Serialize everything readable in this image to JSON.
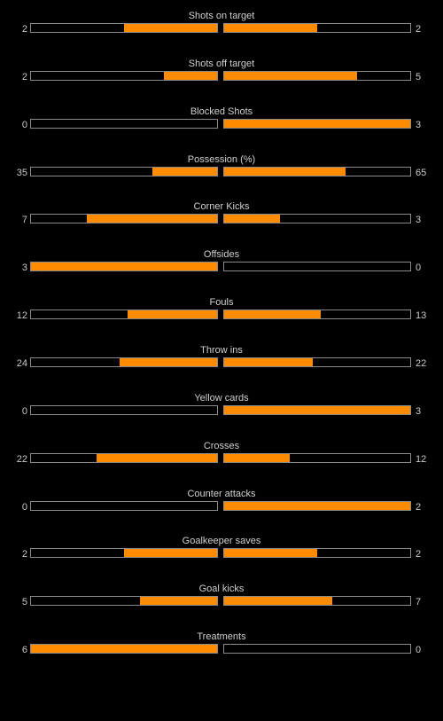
{
  "colors": {
    "background": "#000000",
    "bar_fill": "#ff8c00",
    "bar_border": "#8a8a8a",
    "text": "#c8c8c8"
  },
  "stats": [
    {
      "label": "Shots on target",
      "home": "2",
      "away": "2",
      "home_share": 0.5,
      "away_share": 0.5
    },
    {
      "label": "Shots off target",
      "home": "2",
      "away": "5",
      "home_share": 0.2857,
      "away_share": 0.7143
    },
    {
      "label": "Blocked Shots",
      "home": "0",
      "away": "3",
      "home_share": 0,
      "away_share": 1
    },
    {
      "label": "Possession (%)",
      "home": "35",
      "away": "65",
      "home_share": 0.35,
      "away_share": 0.65
    },
    {
      "label": "Corner Kicks",
      "home": "7",
      "away": "3",
      "home_share": 0.7,
      "away_share": 0.3
    },
    {
      "label": "Offsides",
      "home": "3",
      "away": "0",
      "home_share": 1,
      "away_share": 0
    },
    {
      "label": "Fouls",
      "home": "12",
      "away": "13",
      "home_share": 0.48,
      "away_share": 0.52
    },
    {
      "label": "Throw ins",
      "home": "24",
      "away": "22",
      "home_share": 0.5217,
      "away_share": 0.4783
    },
    {
      "label": "Yellow cards",
      "home": "0",
      "away": "3",
      "home_share": 0,
      "away_share": 1
    },
    {
      "label": "Crosses",
      "home": "22",
      "away": "12",
      "home_share": 0.6471,
      "away_share": 0.3529
    },
    {
      "label": "Counter attacks",
      "home": "0",
      "away": "2",
      "home_share": 0,
      "away_share": 1
    },
    {
      "label": "Goalkeeper saves",
      "home": "2",
      "away": "2",
      "home_share": 0.5,
      "away_share": 0.5
    },
    {
      "label": "Goal kicks",
      "home": "5",
      "away": "7",
      "home_share": 0.4167,
      "away_share": 0.5833
    },
    {
      "label": "Treatments",
      "home": "6",
      "away": "0",
      "home_share": 1,
      "away_share": 0
    }
  ]
}
